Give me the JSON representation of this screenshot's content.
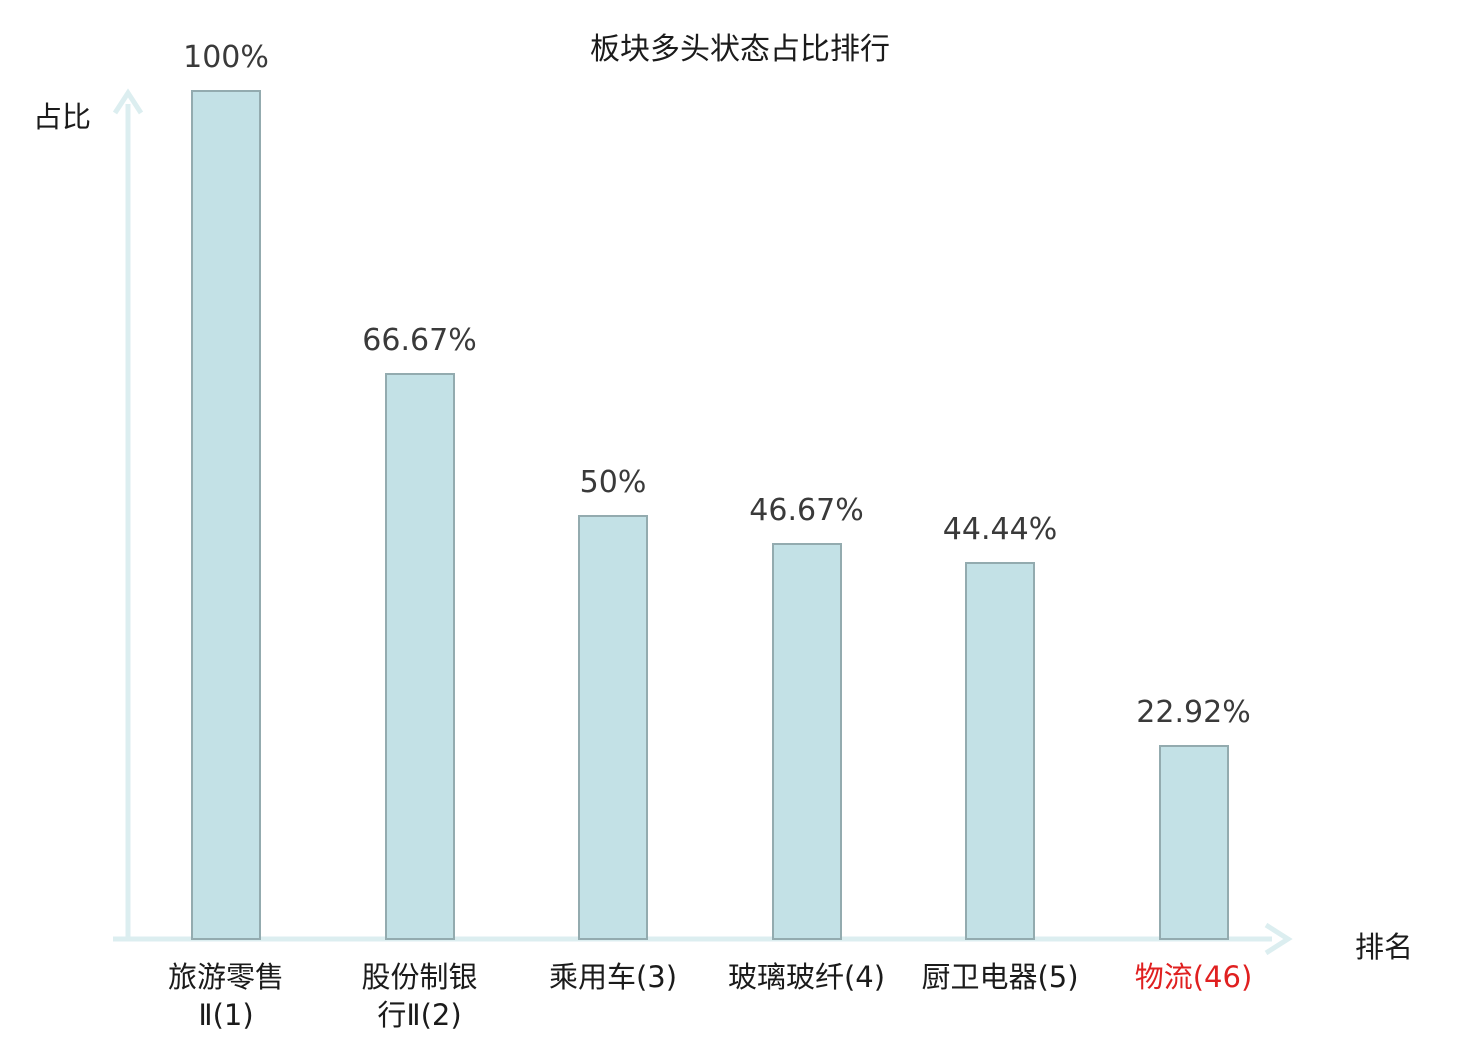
{
  "chart": {
    "title": "板块多头状态占比排行",
    "ylabel": "占比",
    "xlabel": "排名"
  },
  "chart_data": {
    "type": "bar",
    "title": "板块多头状态占比排行",
    "xlabel": "排名",
    "ylabel": "占比",
    "ylim": [
      0,
      100
    ],
    "grid": false,
    "legend": "none",
    "categories": [
      "旅游零售Ⅱ(1)",
      "股份制银行Ⅱ(2)",
      "乘用车(3)",
      "玻璃玻纤(4)",
      "厨卫电器(5)",
      "物流(46)"
    ],
    "values": [
      100,
      66.67,
      50,
      46.67,
      44.44,
      22.92
    ],
    "value_labels": [
      "100%",
      "66.67%",
      "50%",
      "46.67%",
      "44.44%",
      "22.92%"
    ],
    "tick_label_lines": [
      [
        "旅游零售",
        "Ⅱ(1)"
      ],
      [
        "股份制银",
        "行Ⅱ(2)"
      ],
      [
        "乘用车(3)"
      ],
      [
        "玻璃玻纤(4)"
      ],
      [
        "厨卫电器(5)"
      ],
      [
        "物流(46)"
      ]
    ],
    "highlighted_index": 5,
    "colors": {
      "bar_fill": "#c3e1e6",
      "bar_border": "#93abaf",
      "axis": "#dceef0",
      "title_text": "#1b1b1b",
      "tick_text": "#1b1b1b",
      "value_text": "#3a3a3a",
      "highlight_text": "#e02020"
    }
  }
}
